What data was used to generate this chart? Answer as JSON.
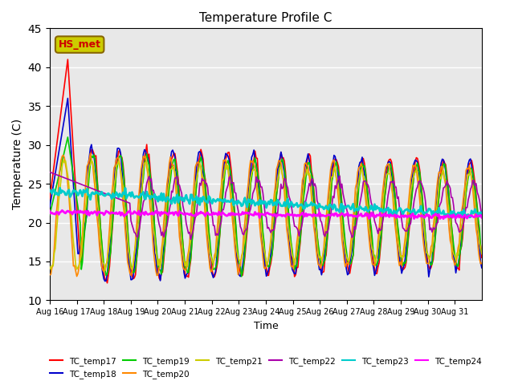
{
  "title": "Temperature Profile C",
  "xlabel": "Time",
  "ylabel": "Temperature (C)",
  "ylim": [
    10,
    45
  ],
  "yticks": [
    10,
    15,
    20,
    25,
    30,
    35,
    40,
    45
  ],
  "series_names": [
    "TC_temp17",
    "TC_temp18",
    "TC_temp19",
    "TC_temp20",
    "TC_temp21",
    "TC_temp22",
    "TC_temp23",
    "TC_temp24"
  ],
  "series_colors": [
    "#ff0000",
    "#0000cc",
    "#00cc00",
    "#ff8800",
    "#cccc00",
    "#aa00aa",
    "#00cccc",
    "#ff00ff"
  ],
  "annotation_text": "HS_met",
  "annotation_color": "#cc0000",
  "annotation_bg": "#cccc00",
  "background_color": "#e8e8e8",
  "grid_color": "#ffffff",
  "n_days": 16,
  "start_day": 16,
  "tick_days": [
    16,
    17,
    18,
    19,
    20,
    21,
    22,
    23,
    24,
    25,
    26,
    27,
    28,
    29,
    30,
    31
  ]
}
